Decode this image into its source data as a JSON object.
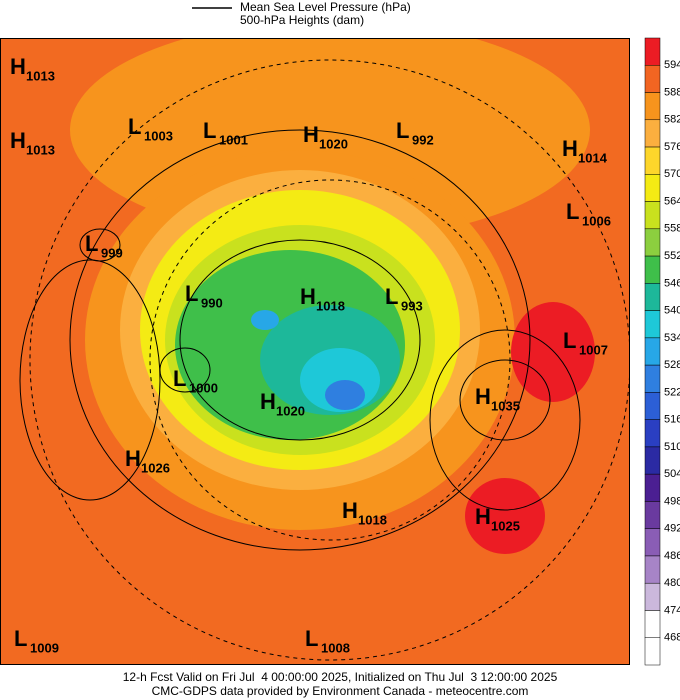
{
  "legend": {
    "items": [
      "Mean Sea Level Pressure (hPa)",
      "500-hPa Heights (dam)"
    ]
  },
  "centers": [
    {
      "type": "H",
      "value": "1013"
    },
    {
      "type": "H",
      "value": "1013"
    },
    {
      "type": "L",
      "value": "1003"
    },
    {
      "type": "L",
      "value": "1001"
    },
    {
      "type": "H",
      "value": "1020"
    },
    {
      "type": "L",
      "value": "992"
    },
    {
      "type": "H",
      "value": "1014"
    },
    {
      "type": "L",
      "value": "1006"
    },
    {
      "type": "L",
      "value": "999"
    },
    {
      "type": "L",
      "value": "990"
    },
    {
      "type": "H",
      "value": "1018"
    },
    {
      "type": "L",
      "value": "993"
    },
    {
      "type": "L",
      "value": "1007"
    },
    {
      "type": "L",
      "value": "1000"
    },
    {
      "type": "H",
      "value": "1020"
    },
    {
      "type": "H",
      "value": "1035"
    },
    {
      "type": "H",
      "value": "1026"
    },
    {
      "type": "H",
      "value": "1018"
    },
    {
      "type": "H",
      "value": "1025"
    },
    {
      "type": "L",
      "value": "1009"
    },
    {
      "type": "L",
      "value": "1008"
    }
  ],
  "colorbar": {
    "labels": [
      "594",
      "588",
      "582",
      "576",
      "570",
      "564",
      "558",
      "552",
      "546",
      "540",
      "534",
      "528",
      "522",
      "516",
      "510",
      "504",
      "498",
      "492",
      "486",
      "480",
      "474",
      "468"
    ],
    "colors": [
      "#ec1c24",
      "#f26522",
      "#f7941d",
      "#fbaf3f",
      "#fdd62b",
      "#f4eb14",
      "#c9e11e",
      "#8ccf3f",
      "#3fbf4a",
      "#1db89a",
      "#1ec8d8",
      "#27a7e7",
      "#2f7fe0",
      "#2c5fd6",
      "#2a3fc2",
      "#2b2aa3",
      "#4b1f92",
      "#6a3a9f",
      "#8a5db5",
      "#a784c7",
      "#cbb8dc",
      "#ffffff",
      "#ffffff"
    ]
  },
  "footer": [
    "12-h Fcst Valid on Fri Jul  4 00:00:00 2025, Initialized on Thu Jul  3 12:00:00 2025",
    "CMC-GDPS data provided by Environment Canada - meteocentre.com"
  ]
}
